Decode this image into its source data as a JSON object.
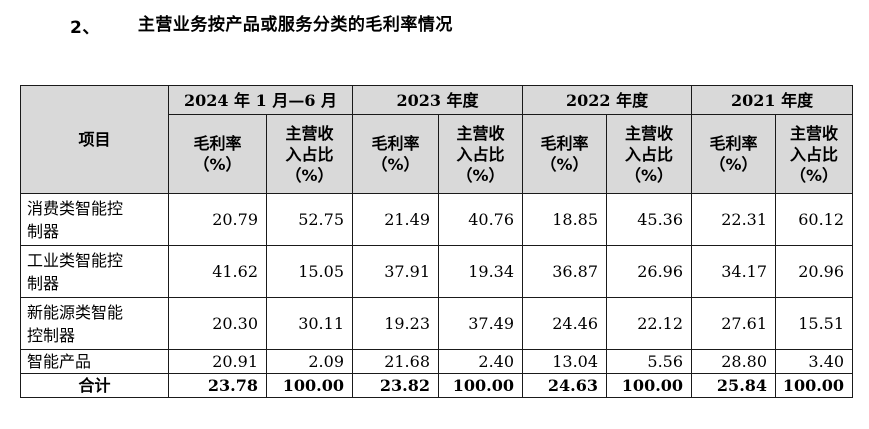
{
  "heading": {
    "number": "2、",
    "title": "主营业务按产品或服务分类的毛利率情况"
  },
  "table": {
    "item_header": "项目",
    "periods": [
      "2024 年 1 月—6 月",
      "2023 年度",
      "2022 年度",
      "2021 年度"
    ],
    "sub_headers": {
      "gross_margin": [
        "毛利率",
        "（%）"
      ],
      "revenue_share": [
        "主营收",
        "入占比",
        "（%）"
      ]
    },
    "rows": [
      {
        "label": [
          "消费类智能控",
          "制器"
        ],
        "values": [
          "20.79",
          "52.75",
          "21.49",
          "40.76",
          "18.85",
          "45.36",
          "22.31",
          "60.12"
        ]
      },
      {
        "label": [
          "工业类智能控",
          "制器"
        ],
        "values": [
          "41.62",
          "15.05",
          "37.91",
          "19.34",
          "36.87",
          "26.96",
          "34.17",
          "20.96"
        ]
      },
      {
        "label": [
          "新能源类智能",
          "控制器"
        ],
        "values": [
          "20.30",
          "30.11",
          "19.23",
          "37.49",
          "24.46",
          "22.12",
          "27.61",
          "15.51"
        ]
      },
      {
        "label": [
          "智能产品"
        ],
        "values": [
          "20.91",
          "2.09",
          "21.68",
          "2.40",
          "13.04",
          "5.56",
          "28.80",
          "3.40"
        ]
      }
    ],
    "total": {
      "label": "合计",
      "values": [
        "23.78",
        "100.00",
        "23.82",
        "100.00",
        "24.63",
        "100.00",
        "25.84",
        "100.00"
      ]
    }
  }
}
